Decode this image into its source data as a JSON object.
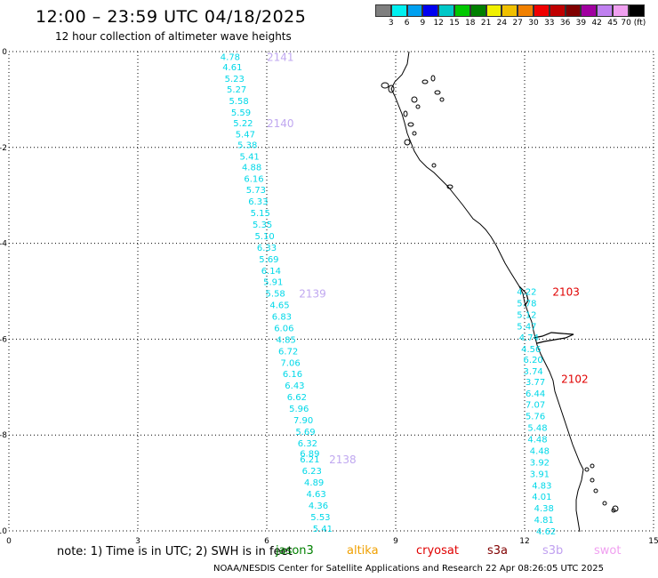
{
  "title": "12:00 – 23:59 UTC 04/18/2025",
  "subtitle": "12 hour collection of altimeter wave heights",
  "colorbar": {
    "colors": [
      "#7f7f7f",
      "#00f0f0",
      "#00a0f0",
      "#0000f0",
      "#00c8c8",
      "#00c800",
      "#008000",
      "#f0f000",
      "#f0c000",
      "#f08000",
      "#f00000",
      "#c00000",
      "#800000",
      "#a000a0",
      "#c080f0",
      "#f0a0f0",
      "#000000"
    ],
    "labels": [
      "3",
      "6",
      "9",
      "12",
      "15",
      "18",
      "21",
      "24",
      "27",
      "30",
      "33",
      "36",
      "39",
      "42",
      "45",
      "70 (ft)"
    ]
  },
  "axes": {
    "x_ticks": [
      "0",
      "3",
      "6",
      "9",
      "12",
      "15"
    ],
    "y_ticks": [
      "0",
      "-2",
      "-4",
      "-6",
      "-8",
      "-10"
    ]
  },
  "chart_data": {
    "type": "scatter",
    "xlim": [
      0,
      15
    ],
    "ylim": [
      -10,
      0
    ],
    "grid": true,
    "tracks": [
      {
        "pass": "2141",
        "label_lon": 6.0,
        "label_lat": -0.1,
        "points": [
          {
            "lon": 5.15,
            "lat": -0.1,
            "v": "4.78"
          },
          {
            "lon": 5.2,
            "lat": -0.32,
            "v": "4.61"
          },
          {
            "lon": 5.25,
            "lat": -0.56,
            "v": "5.23"
          },
          {
            "lon": 5.3,
            "lat": -0.78,
            "v": "5.27"
          },
          {
            "lon": 5.35,
            "lat": -1.02,
            "v": "5.58"
          },
          {
            "lon": 5.4,
            "lat": -1.26,
            "v": "5.59"
          },
          {
            "lon": 5.45,
            "lat": -1.48,
            "v": "5.22"
          },
          {
            "lon": 5.5,
            "lat": -1.72,
            "v": "5.47"
          },
          {
            "lon": 5.55,
            "lat": -1.94,
            "v": "5.38"
          },
          {
            "lon": 5.6,
            "lat": -2.18,
            "v": "5.41"
          },
          {
            "lon": 5.65,
            "lat": -2.4,
            "v": "4.88"
          },
          {
            "lon": 5.7,
            "lat": -2.64,
            "v": "6.16"
          },
          {
            "lon": 5.75,
            "lat": -2.88,
            "v": "5.73"
          },
          {
            "lon": 5.8,
            "lat": -3.12,
            "v": "6.33"
          },
          {
            "lon": 5.85,
            "lat": -3.36,
            "v": "5.15"
          },
          {
            "lon": 5.9,
            "lat": -3.6,
            "v": "5.35"
          },
          {
            "lon": 5.95,
            "lat": -3.84,
            "v": "5.10"
          },
          {
            "lon": 6.0,
            "lat": -4.08,
            "v": "6.33"
          },
          {
            "lon": 6.05,
            "lat": -4.32,
            "v": "5.69"
          },
          {
            "lon": 6.1,
            "lat": -4.56,
            "v": "6.14"
          },
          {
            "lon": 6.15,
            "lat": -4.8,
            "v": "5.91"
          }
        ]
      },
      {
        "pass": "2140",
        "label_lon": 6.0,
        "label_lat": -1.48,
        "points": []
      },
      {
        "pass": "2139",
        "label_lon": 6.75,
        "label_lat": -5.04,
        "points": [
          {
            "lon": 6.2,
            "lat": -5.04,
            "v": "5.58"
          },
          {
            "lon": 6.3,
            "lat": -5.28,
            "v": "4.65"
          },
          {
            "lon": 6.35,
            "lat": -5.52,
            "v": "6.83"
          },
          {
            "lon": 6.4,
            "lat": -5.76,
            "v": "6.06"
          },
          {
            "lon": 6.45,
            "lat": -6.0,
            "v": "4.85"
          },
          {
            "lon": 6.5,
            "lat": -6.24,
            "v": "6.72"
          },
          {
            "lon": 6.55,
            "lat": -6.48,
            "v": "7.06"
          },
          {
            "lon": 6.6,
            "lat": -6.72,
            "v": "6.16"
          },
          {
            "lon": 6.65,
            "lat": -6.96,
            "v": "6.43"
          },
          {
            "lon": 6.7,
            "lat": -7.2,
            "v": "6.62"
          },
          {
            "lon": 6.75,
            "lat": -7.44,
            "v": "5.96"
          },
          {
            "lon": 6.85,
            "lat": -7.68,
            "v": "7.90"
          },
          {
            "lon": 6.9,
            "lat": -7.92,
            "v": "5.69"
          },
          {
            "lon": 6.95,
            "lat": -8.16,
            "v": "6.32"
          },
          {
            "lon": 7.0,
            "lat": -8.38,
            "v": "6.89"
          }
        ]
      },
      {
        "pass": "2138",
        "label_lon": 7.45,
        "label_lat": -8.5,
        "points": [
          {
            "lon": 7.0,
            "lat": -8.5,
            "v": "6.21"
          },
          {
            "lon": 7.05,
            "lat": -8.74,
            "v": "6.23"
          },
          {
            "lon": 7.1,
            "lat": -8.98,
            "v": "4.89"
          },
          {
            "lon": 7.15,
            "lat": -9.22,
            "v": "4.63"
          },
          {
            "lon": 7.2,
            "lat": -9.46,
            "v": "4.36"
          },
          {
            "lon": 7.25,
            "lat": -9.7,
            "v": "5.53"
          },
          {
            "lon": 7.3,
            "lat": -9.94,
            "v": "5.41"
          }
        ]
      },
      {
        "pass": "2103",
        "label_lon": 12.65,
        "label_lat": -5.0,
        "points": [
          {
            "lon": 12.05,
            "lat": -5.0,
            "v": "4.22"
          },
          {
            "lon": 12.05,
            "lat": -5.24,
            "v": "5.78"
          },
          {
            "lon": 12.05,
            "lat": -5.48,
            "v": "5.12"
          },
          {
            "lon": 12.05,
            "lat": -5.72,
            "v": "5.47"
          },
          {
            "lon": 12.1,
            "lat": -5.96,
            "v": "4.74"
          }
        ]
      },
      {
        "pass": "2102",
        "label_lon": 12.85,
        "label_lat": -6.82,
        "points": [
          {
            "lon": 12.15,
            "lat": -6.2,
            "v": "4.56"
          },
          {
            "lon": 12.2,
            "lat": -6.42,
            "v": "6.20"
          },
          {
            "lon": 12.2,
            "lat": -6.66,
            "v": "3.74"
          },
          {
            "lon": 12.25,
            "lat": -6.88,
            "v": "3.77"
          },
          {
            "lon": 12.25,
            "lat": -7.12,
            "v": "6.44"
          },
          {
            "lon": 12.25,
            "lat": -7.36,
            "v": "7.07"
          },
          {
            "lon": 12.25,
            "lat": -7.6,
            "v": "5.76"
          },
          {
            "lon": 12.3,
            "lat": -7.84,
            "v": "5.48"
          },
          {
            "lon": 12.3,
            "lat": -8.08,
            "v": "4.48"
          },
          {
            "lon": 12.35,
            "lat": -8.32,
            "v": "4.48"
          },
          {
            "lon": 12.35,
            "lat": -8.56,
            "v": "3.92"
          },
          {
            "lon": 12.35,
            "lat": -8.8,
            "v": "3.91"
          },
          {
            "lon": 12.4,
            "lat": -9.04,
            "v": "4.83"
          },
          {
            "lon": 12.4,
            "lat": -9.28,
            "v": "4.01"
          },
          {
            "lon": 12.45,
            "lat": -9.52,
            "v": "4.38"
          },
          {
            "lon": 12.45,
            "lat": -9.76,
            "v": "4.81"
          },
          {
            "lon": 12.5,
            "lat": -10.0,
            "v": "4.62"
          }
        ]
      }
    ]
  },
  "footer": {
    "note": "note:  1) Time is in UTC; 2) SWH is in feet",
    "credit": "NOAA/NESDIS Center for Satellite Applications and Research     22 Apr 08:26:05 UTC 2025",
    "satellites": [
      {
        "name": "jason3",
        "color": "#008000"
      },
      {
        "name": "altika",
        "color": "#f0a000"
      },
      {
        "name": "cryosat",
        "color": "#e00000"
      },
      {
        "name": "s3a",
        "color": "#800000"
      },
      {
        "name": "s3b",
        "color": "#c0a0f0"
      },
      {
        "name": "swot",
        "color": "#f0a0f0"
      }
    ]
  },
  "colors": {
    "track_text": "#00d8e8",
    "pass_2141": "#c0a8f0",
    "pass_2103": "#e00000",
    "coast": "#000000",
    "grid": "#000000"
  }
}
